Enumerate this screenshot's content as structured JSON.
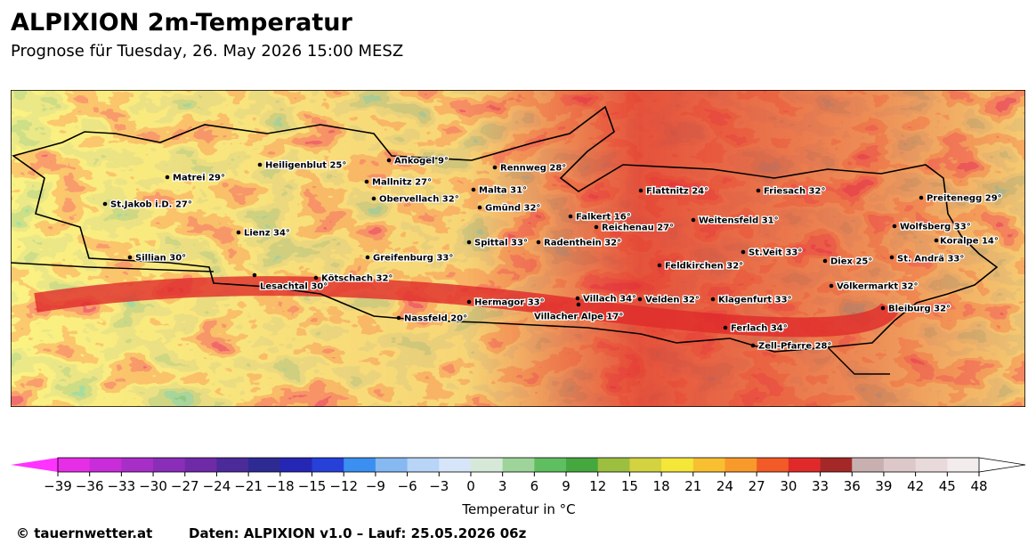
{
  "header": {
    "title": "ALPIXION 2m-Temperatur",
    "subtitle": "Prognose für Tuesday, 26. May 2026 15:00 MESZ"
  },
  "map": {
    "cities": [
      {
        "label": "Matrei 29°"
      },
      {
        "label": "Heiligenblut 25°"
      },
      {
        "label": "Ankogel 9°"
      },
      {
        "label": "Rennweg 28°"
      },
      {
        "label": "Mallnitz 27°"
      },
      {
        "label": "Malta 31°"
      },
      {
        "label": "Flattnitz 24°"
      },
      {
        "label": "Friesach 32°"
      },
      {
        "label": "Preitenegg 29°"
      },
      {
        "label": "St.Jakob i.D. 27°"
      },
      {
        "label": "Obervellach 32°"
      },
      {
        "label": "Gmünd 32°"
      },
      {
        "label": "Falkert 16°"
      },
      {
        "label": "Weitensfeld 31°"
      },
      {
        "label": "Reichenau 27°"
      },
      {
        "label": "Wolfsberg 33°"
      },
      {
        "label": "Lienz 34°"
      },
      {
        "label": "Spittal 33°"
      },
      {
        "label": "Radenthein 32°"
      },
      {
        "label": "Koralpe 14°"
      },
      {
        "label": "St.Veit 33°"
      },
      {
        "label": "Sillian 30°"
      },
      {
        "label": "Greifenburg 33°"
      },
      {
        "label": "Diex 25°"
      },
      {
        "label": "St. Andrä 33°"
      },
      {
        "label": "Feldkirchen 32°"
      },
      {
        "label": "Kötschach 32°"
      },
      {
        "label": "Lesachtal 30°"
      },
      {
        "label": "Völkermarkt 32°"
      },
      {
        "label": "Villach 34°"
      },
      {
        "label": "Velden 32°"
      },
      {
        "label": "Klagenfurt 33°"
      },
      {
        "label": "Hermagor 33°"
      },
      {
        "label": "Bleiburg 32°"
      },
      {
        "label": "Villacher Alpe 17°"
      },
      {
        "label": "Nassfeld 20°"
      },
      {
        "label": "Ferlach 34°"
      },
      {
        "label": "Zell-Pfarre 28°"
      }
    ]
  },
  "colorbar": {
    "label": "Temperatur in °C",
    "ticks": [
      {
        "value": -39,
        "label": "−39"
      },
      {
        "value": -36,
        "label": "−36"
      },
      {
        "value": -33,
        "label": "−33"
      },
      {
        "value": -30,
        "label": "−30"
      },
      {
        "value": -27,
        "label": "−27"
      },
      {
        "value": -24,
        "label": "−24"
      },
      {
        "value": -21,
        "label": "−21"
      },
      {
        "value": -18,
        "label": "−18"
      },
      {
        "value": -15,
        "label": "−15"
      },
      {
        "value": -12,
        "label": "−12"
      },
      {
        "value": -9,
        "label": "−9"
      },
      {
        "value": -6,
        "label": "−6"
      },
      {
        "value": -3,
        "label": "−3"
      },
      0,
      3,
      6,
      9,
      12,
      15,
      18,
      21,
      24,
      27,
      30,
      33,
      36,
      39,
      42,
      45,
      48
    ],
    "colors": [
      "#e62ee6",
      "#c92cd9",
      "#a82ec8",
      "#8a2db8",
      "#6f2aa8",
      "#4b2a9a",
      "#2e2a94",
      "#2626b5",
      "#2640d8",
      "#3a8ff0",
      "#86b8f2",
      "#b8d4f6",
      "#d6e6f8",
      "#d6e8d8",
      "#9ed49a",
      "#5fbe5f",
      "#45a83f",
      "#9cbf40",
      "#d3d240",
      "#f5e63a",
      "#f8c030",
      "#f89a2a",
      "#f25a28",
      "#e02a2a",
      "#a52828",
      "#c8b0b0",
      "#dcc8c8",
      "#e8dada",
      "#f2ecec"
    ],
    "extend_colors": [
      "#ff33ff",
      "#ffffff"
    ]
  },
  "footer": {
    "copyright": "© tauernwetter.at",
    "data_source": "Daten: ALPIXION v1.0 – Lauf: 25.05.2026 06z"
  }
}
